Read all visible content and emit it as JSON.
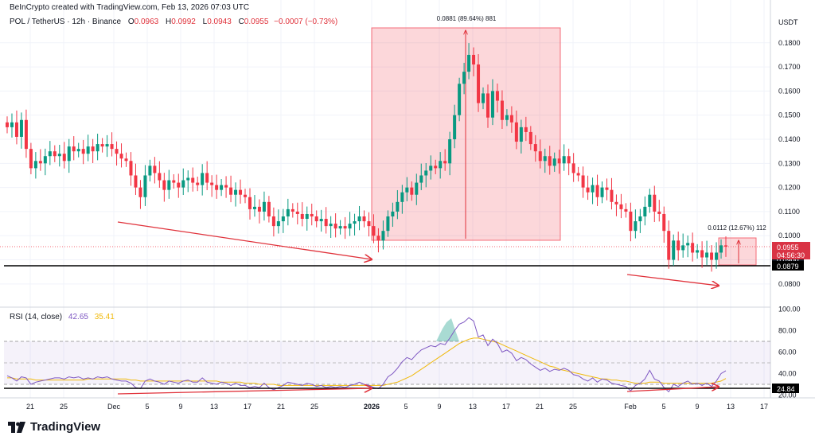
{
  "header": {
    "credit": "BeInCrypto created with TradingView.com, Feb 13, 2026 07:03 UTC",
    "symbol": "POL / TetherUS · 12h · Binance",
    "open_label": "O",
    "open": "0.0963",
    "high_label": "H",
    "high": "0.0992",
    "low_label": "L",
    "low": "0.0943",
    "close_label": "C",
    "close": "0.0955",
    "change": "−0.0007 (−0.73%)"
  },
  "axis": {
    "currency": "USDT"
  },
  "price_tags": {
    "last": "0.0955",
    "countdown": "04:56:30",
    "support": "0.0879",
    "hidden": "0.0900"
  },
  "measures": {
    "rally": "0.0881 (89.64%) 881",
    "recent": "0.0112 (12.67%) 112"
  },
  "rsi": {
    "title": "RSI (14, close)",
    "value": "42.65",
    "ma": "35.41",
    "support_tag": "24.84"
  },
  "logo": {
    "text": "TradingView"
  },
  "colors": {
    "up": "#089981",
    "down": "#f23645",
    "rsi": "#7e57c2",
    "rsi_ma": "#f0b90b",
    "zone": "#f23645"
  },
  "chart_data": [
    {
      "type": "candlestick",
      "title": "POL / TetherUS · 12h · Binance",
      "y_axis_label": "USDT",
      "ylim": [
        0.077,
        0.1875
      ],
      "y_ticks": [
        0.08,
        0.09,
        0.1,
        0.11,
        0.12,
        0.13,
        0.14,
        0.15,
        0.16,
        0.17,
        0.18
      ],
      "x_ticks": [
        "21",
        "25",
        "Dec",
        "5",
        "9",
        "13",
        "17",
        "21",
        "25",
        "2026",
        "5",
        "9",
        "13",
        "17",
        "21",
        "25",
        "Feb",
        "5",
        "9",
        "13",
        "17"
      ],
      "grid": true,
      "candles_close": [
        0.145,
        0.147,
        0.141,
        0.148,
        0.136,
        0.128,
        0.131,
        0.13,
        0.133,
        0.135,
        0.133,
        0.134,
        0.131,
        0.137,
        0.135,
        0.136,
        0.134,
        0.137,
        0.135,
        0.138,
        0.137,
        0.138,
        0.136,
        0.134,
        0.132,
        0.131,
        0.125,
        0.12,
        0.116,
        0.125,
        0.129,
        0.126,
        0.123,
        0.119,
        0.123,
        0.122,
        0.12,
        0.123,
        0.124,
        0.122,
        0.121,
        0.126,
        0.122,
        0.121,
        0.119,
        0.121,
        0.12,
        0.117,
        0.119,
        0.117,
        0.116,
        0.111,
        0.112,
        0.11,
        0.114,
        0.108,
        0.104,
        0.106,
        0.108,
        0.111,
        0.11,
        0.109,
        0.107,
        0.109,
        0.108,
        0.106,
        0.107,
        0.104,
        0.105,
        0.103,
        0.104,
        0.103,
        0.105,
        0.106,
        0.108,
        0.106,
        0.104,
        0.1,
        0.098,
        0.102,
        0.108,
        0.11,
        0.114,
        0.118,
        0.12,
        0.117,
        0.122,
        0.125,
        0.127,
        0.129,
        0.128,
        0.131,
        0.13,
        0.14,
        0.15,
        0.163,
        0.168,
        0.175,
        0.171,
        0.155,
        0.159,
        0.149,
        0.16,
        0.156,
        0.148,
        0.15,
        0.147,
        0.139,
        0.145,
        0.143,
        0.138,
        0.135,
        0.131,
        0.133,
        0.129,
        0.132,
        0.13,
        0.133,
        0.13,
        0.126,
        0.125,
        0.12,
        0.118,
        0.121,
        0.116,
        0.12,
        0.119,
        0.114,
        0.113,
        0.111,
        0.11,
        0.102,
        0.106,
        0.108,
        0.112,
        0.117,
        0.11,
        0.109,
        0.102,
        0.09,
        0.098,
        0.094,
        0.096,
        0.097,
        0.093,
        0.094,
        0.091,
        0.093,
        0.09,
        0.093,
        0.096,
        0.0955
      ],
      "annotations": [
        {
          "type": "price_range",
          "label": "0.0881 (89.64%) 881",
          "from": 0.0981,
          "to": 0.1862
        },
        {
          "type": "price_range",
          "label": "0.0112 (12.67%) 112",
          "from": 0.0879,
          "to": 0.0991
        },
        {
          "type": "horizontal_line",
          "value": 0.0879,
          "label": "0.0879"
        },
        {
          "type": "last_price",
          "value": 0.0955,
          "countdown": "04:56:30"
        },
        {
          "type": "trend_arrow",
          "description": "descending price lows",
          "panel": "price"
        },
        {
          "type": "trend_arrow",
          "description": "descending price lows",
          "panel": "price"
        }
      ]
    },
    {
      "type": "line",
      "title": "RSI (14, close)",
      "ylim": [
        18,
        100
      ],
      "y_ticks": [
        20,
        40,
        60,
        80,
        100
      ],
      "overbought": 70,
      "midline": 50,
      "oversold": 30,
      "series": [
        {
          "name": "RSI",
          "values": [
            38,
            36,
            33,
            37,
            36,
            30,
            32,
            33,
            34,
            35,
            36,
            36,
            35,
            37,
            36,
            37,
            35,
            36,
            35,
            37,
            36,
            37,
            35,
            34,
            33,
            33,
            31,
            27,
            26,
            33,
            35,
            33,
            32,
            30,
            33,
            32,
            31,
            33,
            34,
            32,
            32,
            36,
            32,
            31,
            30,
            32,
            31,
            29,
            31,
            29,
            29,
            27,
            28,
            27,
            31,
            27,
            25,
            27,
            29,
            32,
            31,
            30,
            29,
            31,
            30,
            28,
            29,
            27,
            28,
            27,
            28,
            27,
            29,
            30,
            32,
            30,
            29,
            27,
            26,
            30,
            37,
            40,
            45,
            51,
            55,
            53,
            58,
            62,
            64,
            66,
            65,
            68,
            67,
            73,
            80,
            86,
            88,
            92,
            89,
            74,
            76,
            66,
            72,
            68,
            60,
            62,
            59,
            52,
            55,
            53,
            49,
            46,
            43,
            45,
            42,
            44,
            43,
            45,
            43,
            39,
            38,
            35,
            33,
            36,
            32,
            35,
            34,
            31,
            30,
            29,
            28,
            24,
            29,
            31,
            35,
            43,
            35,
            33,
            27,
            23,
            30,
            28,
            31,
            33,
            30,
            31,
            29,
            31,
            28,
            33,
            40,
            42.65
          ]
        },
        {
          "name": "RSI-based MA",
          "values": [
            36,
            36,
            35,
            35,
            35,
            35,
            34,
            34,
            34,
            34,
            34,
            34,
            34,
            34,
            34,
            34,
            34,
            35,
            35,
            35,
            35,
            35,
            35,
            35,
            35,
            35,
            34,
            34,
            33,
            33,
            33,
            33,
            33,
            33,
            33,
            33,
            33,
            33,
            33,
            33,
            33,
            33,
            33,
            33,
            33,
            32,
            32,
            32,
            32,
            32,
            31,
            31,
            31,
            30,
            30,
            30,
            30,
            29,
            29,
            29,
            29,
            29,
            29,
            29,
            29,
            29,
            29,
            29,
            29,
            29,
            29,
            29,
            29,
            29,
            29,
            29,
            29,
            29,
            29,
            29,
            30,
            31,
            32,
            34,
            36,
            38,
            41,
            44,
            47,
            50,
            53,
            56,
            59,
            62,
            65,
            68,
            70,
            72,
            73,
            73,
            72,
            71,
            70,
            69,
            67,
            65,
            63,
            61,
            59,
            57,
            55,
            53,
            51,
            49,
            47,
            46,
            44,
            43,
            42,
            41,
            40,
            39,
            38,
            37,
            36,
            35,
            35,
            34,
            34,
            33,
            33,
            32,
            31,
            31,
            31,
            32,
            32,
            32,
            31,
            31,
            31,
            31,
            31,
            31,
            31,
            31,
            31,
            31,
            31,
            32,
            33,
            35.41
          ]
        }
      ],
      "annotations": [
        {
          "type": "horizontal_line",
          "value": 24.84,
          "label": "24.84"
        },
        {
          "type": "trend_arrow",
          "description": "rising RSI lows"
        },
        {
          "type": "trend_arrow",
          "description": "rising RSI lows"
        }
      ]
    }
  ]
}
